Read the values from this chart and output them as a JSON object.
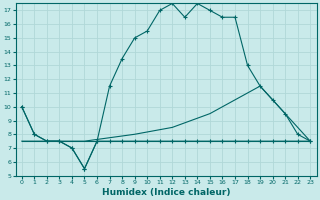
{
  "xlabel": "Humidex (Indice chaleur)",
  "xlim": [
    -0.5,
    23.5
  ],
  "ylim": [
    5,
    17.5
  ],
  "xticks": [
    0,
    1,
    2,
    3,
    4,
    5,
    6,
    7,
    8,
    9,
    10,
    11,
    12,
    13,
    14,
    15,
    16,
    17,
    18,
    19,
    20,
    21,
    22,
    23
  ],
  "yticks": [
    5,
    6,
    7,
    8,
    9,
    10,
    11,
    12,
    13,
    14,
    15,
    16,
    17
  ],
  "bg_color": "#c9eaea",
  "grid_color": "#b0d8d8",
  "line_color": "#006666",
  "lines": [
    {
      "x": [
        0,
        1,
        2,
        3,
        4,
        5,
        6,
        7,
        8,
        9,
        10,
        11,
        12,
        13,
        14,
        15,
        16,
        17,
        18,
        19,
        20,
        21,
        22,
        23
      ],
      "y": [
        10,
        8,
        7.5,
        7.5,
        7,
        5.5,
        7.5,
        7.5,
        7.5,
        7.5,
        7.5,
        7.5,
        7.5,
        7.5,
        7.5,
        7.5,
        7.5,
        7.5,
        7.5,
        7.5,
        7.5,
        7.5,
        7.5,
        7.5
      ],
      "marker": "+"
    },
    {
      "x": [
        0,
        5,
        23
      ],
      "y": [
        7.5,
        7.5,
        7.5
      ],
      "marker": null
    },
    {
      "x": [
        0,
        5,
        9,
        12,
        15,
        19,
        20,
        21,
        22,
        23
      ],
      "y": [
        7.5,
        7.5,
        8.0,
        8.5,
        9.5,
        11.5,
        10.5,
        9.5,
        8.5,
        7.5
      ],
      "marker": null
    },
    {
      "x": [
        0,
        1,
        2,
        3,
        4,
        5,
        6,
        7,
        8,
        9,
        10,
        11,
        12,
        13,
        14,
        15,
        16,
        17,
        18,
        19,
        20,
        21,
        22,
        23
      ],
      "y": [
        10,
        8,
        7.5,
        7.5,
        7,
        5.5,
        7.5,
        11.5,
        13.5,
        15.0,
        15.5,
        17.0,
        17.5,
        16.5,
        17.5,
        17.0,
        16.5,
        16.5,
        13.0,
        11.5,
        10.5,
        9.5,
        8.0,
        7.5
      ],
      "marker": "+"
    }
  ]
}
